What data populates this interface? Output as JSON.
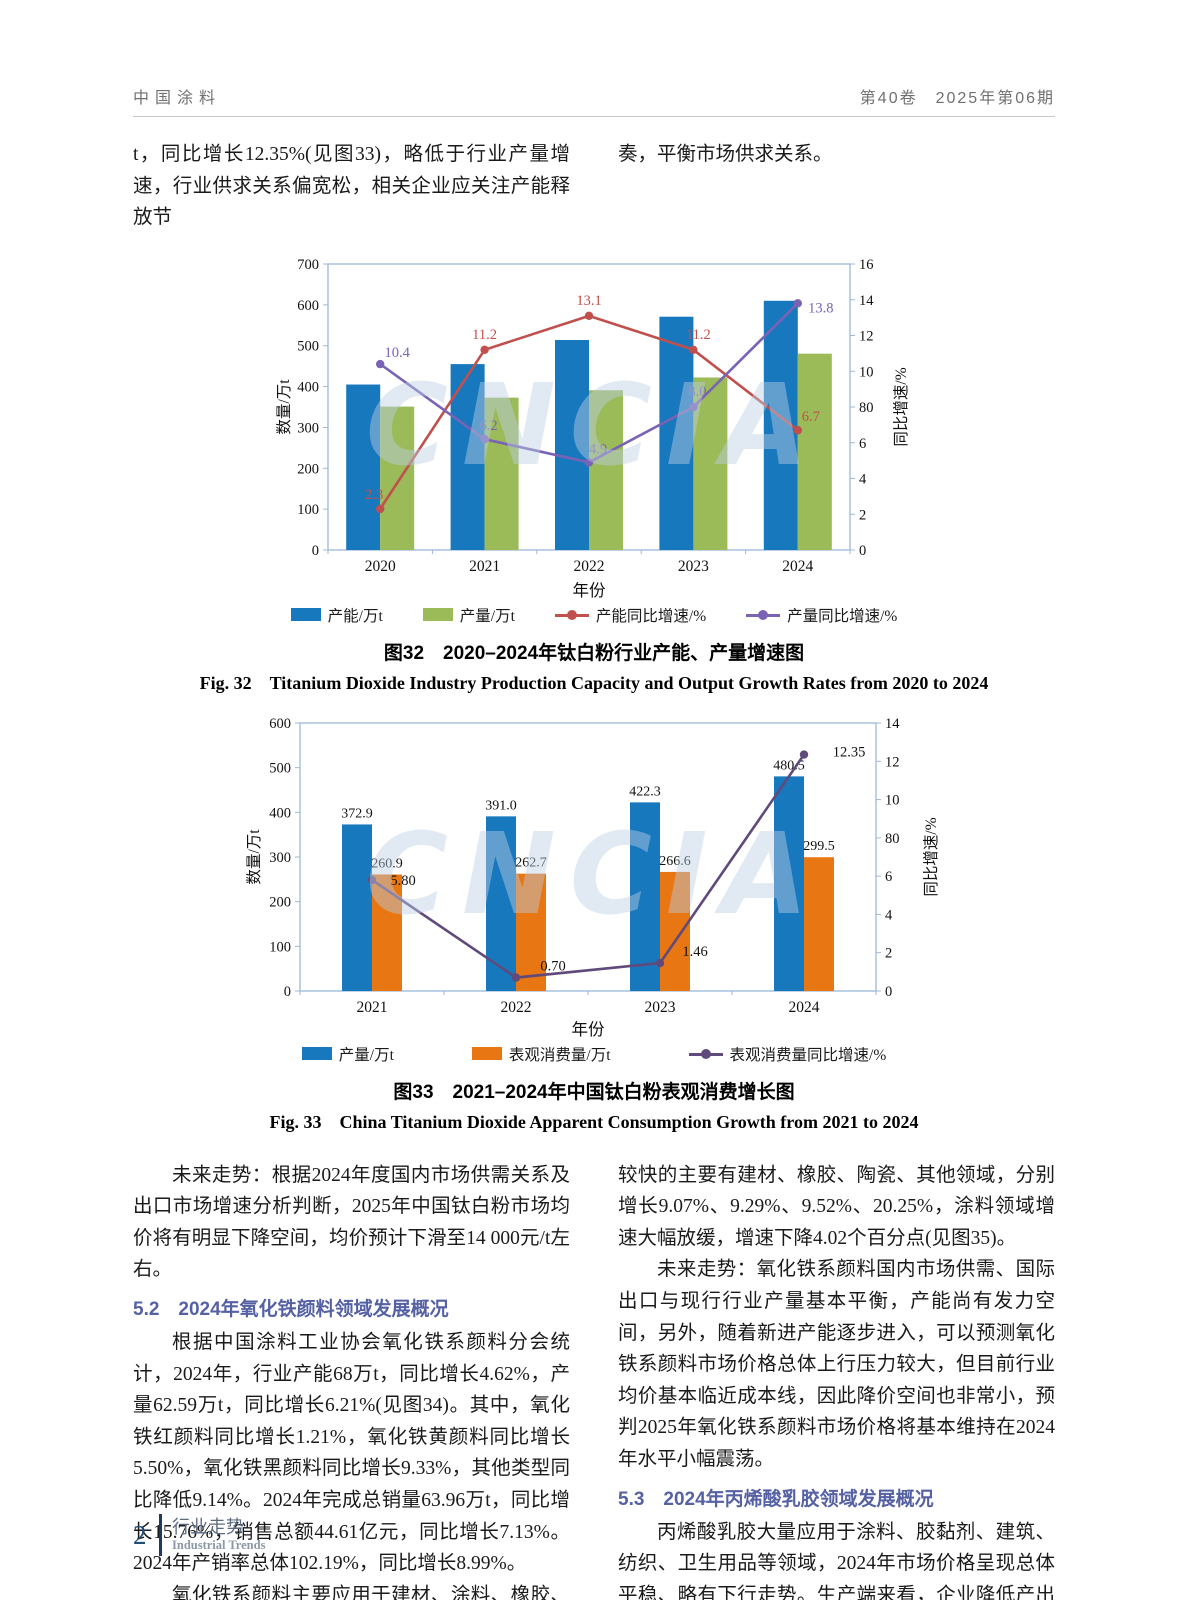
{
  "header": {
    "journal": "中国涂料",
    "issue": "第40卷　2025年第06期"
  },
  "intro": {
    "left": "t，同比增长12.35%(见图33)，略低于行业产量增速，行业供求关系偏宽松，相关企业应关注产能释放节",
    "right": "奏，平衡市场供求关系。"
  },
  "watermark": "CNCIA",
  "chart_data": [
    {
      "type": "bar",
      "subtype": "bar+line combo, dual axis",
      "categories": [
        "2020",
        "2021",
        "2022",
        "2023",
        "2024"
      ],
      "bar_series": [
        {
          "name": "产能/万t",
          "color": "#1878be",
          "values": [
            405,
            455,
            514,
            571,
            610
          ]
        },
        {
          "name": "产量/万t",
          "color": "#9bbb59",
          "values": [
            351,
            372.9,
            391.0,
            422.3,
            480.5
          ]
        }
      ],
      "line_series": [
        {
          "name": "产能同比增速/%",
          "color": "#c0504d",
          "values": [
            2.3,
            11.2,
            13.1,
            11.2,
            6.7
          ],
          "labels": [
            "2.3",
            "11.2",
            "13.1",
            "11.2",
            "6.7"
          ]
        },
        {
          "name": "产量同比增速/%",
          "color": "#7a62b5",
          "values": [
            10.4,
            6.2,
            4.9,
            8.0,
            13.8
          ],
          "labels": [
            "10.4",
            "6.2",
            "4.9",
            "8.0",
            "13.8"
          ]
        }
      ],
      "xlabel": "年份",
      "ylabel_left": "数量/万t",
      "ylabel_right": "同比增速/%",
      "ylim_left": [
        0,
        700
      ],
      "yticks_left": [
        "0",
        "100",
        "200",
        "300",
        "400",
        "500",
        "600",
        "700"
      ],
      "ylim_right": [
        0,
        16
      ],
      "yticks_right": [
        "0",
        "2",
        "4",
        "6",
        "80",
        "10",
        "12",
        "14",
        "16"
      ],
      "grid": "off",
      "legend_position": "bottom"
    },
    {
      "type": "bar",
      "subtype": "bar+line combo, dual axis",
      "categories": [
        "2021",
        "2022",
        "2023",
        "2024"
      ],
      "bar_series": [
        {
          "name": "产量/万t",
          "color": "#1878be",
          "values": [
            372.9,
            391.0,
            422.3,
            480.5
          ],
          "labels": [
            "372.9",
            "391.0",
            "422.3",
            "480.5"
          ]
        },
        {
          "name": "表观消费量/万t",
          "color": "#e87612",
          "values": [
            260.9,
            262.7,
            266.6,
            299.5
          ],
          "labels": [
            "260.9",
            "262.7",
            "266.6",
            "299.5"
          ]
        }
      ],
      "line_series": [
        {
          "name": "表观消费量同比增速/%",
          "color": "#604a7b",
          "values": [
            5.8,
            0.7,
            1.46,
            12.35
          ],
          "labels": [
            "5.80",
            "0.70",
            "1.46",
            "12.35"
          ]
        }
      ],
      "xlabel": "年份",
      "ylabel_left": "数量/万t",
      "ylabel_right": "同比增速/%",
      "ylim_left": [
        0,
        600
      ],
      "yticks_left": [
        "0",
        "100",
        "200",
        "300",
        "400",
        "500",
        "600"
      ],
      "ylim_right": [
        0,
        14
      ],
      "yticks_right": [
        "0",
        "2",
        "4",
        "6",
        "80",
        "10",
        "12",
        "14"
      ],
      "grid": "off",
      "legend_position": "bottom"
    }
  ],
  "figure32": {
    "caption_zh": "图32　2020–2024年钛白粉行业产能、产量增速图",
    "caption_en": "Fig. 32　Titanium Dioxide Industry Production Capacity and Output Growth Rates from 2020 to 2024"
  },
  "figure33": {
    "caption_zh": "图33　2021–2024年中国钛白粉表观消费增长图",
    "caption_en": "Fig. 33　China Titanium Dioxide Apparent Consumption Growth from 2021 to 2024"
  },
  "sections": {
    "left": [
      {
        "text": "未来走势：根据2024年度国内市场供需关系及出口市场增速分析判断，2025年中国钛白粉市场均价将有明显下降空间，均价预计下滑至14 000元/t左右。"
      },
      {
        "text": "5.2　2024年氧化铁颜料领域发展概况"
      },
      {
        "text": "根据中国涂料工业协会氧化铁系颜料分会统计，2024年，行业产能68万t，同比增长4.62%，产量62.59万t，同比增长6.21%(见图34)。其中，氧化铁红颜料同比增长1.21%，氧化铁黄颜料同比增长5.50%，氧化铁黑颜料同比增长9.33%，其他类型同比降低9.14%。2024年完成总销量63.96万t，同比增长15.76%，销售总额44.61亿元，同比增长7.13%。2024年产销率总体102.19%，同比增长8.99%。"
      },
      {
        "text": "氧化铁系颜料主要应用于建材、涂料、橡胶、塑料、陶瓷、造纸、食品、医药等领域，2024年供货量增长"
      }
    ],
    "right": [
      {
        "text": "较快的主要有建材、橡胶、陶瓷、其他领域，分别增长9.07%、9.29%、9.52%、20.25%，涂料领域增速大幅放缓，增速下降4.02个百分点(见图35)。"
      },
      {
        "text": "未来走势：氧化铁系颜料国内市场供需、国际出口与现行行业产量基本平衡，产能尚有发力空间，另外，随着新进产能逐步进入，可以预测氧化铁系颜料市场价格总体上行压力较大，但目前行业均价基本临近成本线，因此降价空间也非常小，预判2025年氧化铁系颜料市场价格将基本维持在2024年水平小幅震荡。"
      },
      {
        "text": "5.3　2024年丙烯酸乳胶领域发展概况"
      },
      {
        "text": "丙烯酸乳胶大量应用于涂料、胶黏剂、建筑、纺织、卫生用品等领域，2024年市场价格呈现总体平稳、略有下行走势。生产端来看，企业降低产出成为共识，拉低开工率，基本停止新装置建设，调整供需关系。主"
      }
    ]
  },
  "footer": {
    "page": "2",
    "title_zh": "行业走势",
    "title_en": "Industrial Trends"
  }
}
